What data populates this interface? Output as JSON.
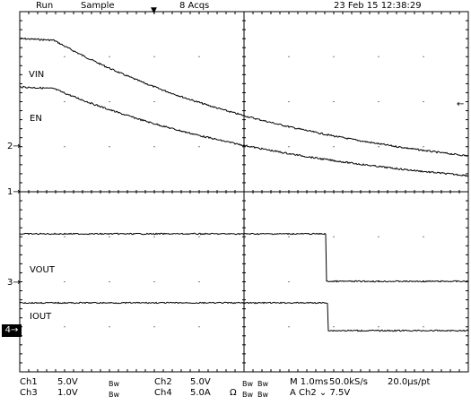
{
  "status": {
    "run": "Run",
    "acq_mode": "Sample",
    "acqs": "8 Acqs",
    "datetime": "23 Feb 15 12:38:29"
  },
  "labels": {
    "vin": "VIN",
    "en": "EN",
    "vout": "VOUT",
    "iout": "IOUT"
  },
  "markers": {
    "top_2": "2",
    "top_1": "1",
    "bottom_3": "3",
    "bottom_4": "4"
  },
  "footer": {
    "ch1_label": "Ch1",
    "ch1_scale": "5.0V",
    "ch1_bw": "Bw",
    "ch2_label": "Ch2",
    "ch2_scale": "5.0V",
    "ch2_bw": "Bw",
    "ch3_label": "Ch3",
    "ch3_scale": "1.0V",
    "ch3_bw": "Bw",
    "ch4_label": "Ch4",
    "ch4_scale": "5.0A",
    "ch4_ohm": "Ω",
    "ch4_bw": "Bw",
    "bw_a": "Bw",
    "bw_b": "Bw",
    "timebase": "M 1.0ms",
    "sample_rate": "50.0kS/s",
    "pt_rate": "20.0μs/pt",
    "trigger": "A  Ch2  ⌄  7.5V"
  },
  "colors": {
    "background": "#ffffff",
    "trace": "#000000",
    "grid": "#000000"
  }
}
